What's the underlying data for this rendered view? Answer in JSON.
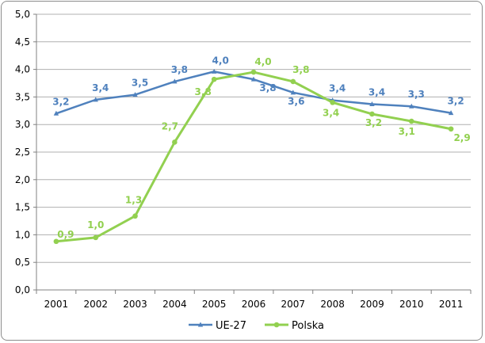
{
  "chart_data": {
    "type": "line",
    "categories": [
      "2001",
      "2002",
      "2003",
      "2004",
      "2005",
      "2006",
      "2007",
      "2008",
      "2009",
      "2010",
      "2011"
    ],
    "ylim": [
      0,
      5
    ],
    "y_ticks": [
      "0,0",
      "0,5",
      "1,0",
      "1,5",
      "2,0",
      "2,5",
      "3,0",
      "3,5",
      "4,0",
      "4,5",
      "5,0"
    ],
    "grid": true,
    "legend_position": "bottom",
    "series": [
      {
        "name": "UE-27",
        "color": "#4f81bd",
        "marker": "triangle",
        "values": [
          3.2,
          3.45,
          3.54,
          3.78,
          3.96,
          3.82,
          3.58,
          3.44,
          3.37,
          3.33,
          3.21
        ],
        "labels": [
          "3,2",
          "3,4",
          "3,5",
          "3,8",
          "4,0",
          "3,8",
          "3,6",
          "3,4",
          "3,4",
          "3,3",
          "3,2"
        ]
      },
      {
        "name": "Polska",
        "color": "#92d050",
        "marker": "circle",
        "values": [
          0.88,
          0.95,
          1.34,
          2.68,
          3.82,
          3.95,
          3.78,
          3.4,
          3.19,
          3.06,
          2.92
        ],
        "labels": [
          "0,9",
          "1,0",
          "1,3",
          "2,7",
          "3,8",
          "4,0",
          "3,8",
          "3,4",
          "3,2",
          "3,1",
          "2,9"
        ]
      }
    ]
  }
}
